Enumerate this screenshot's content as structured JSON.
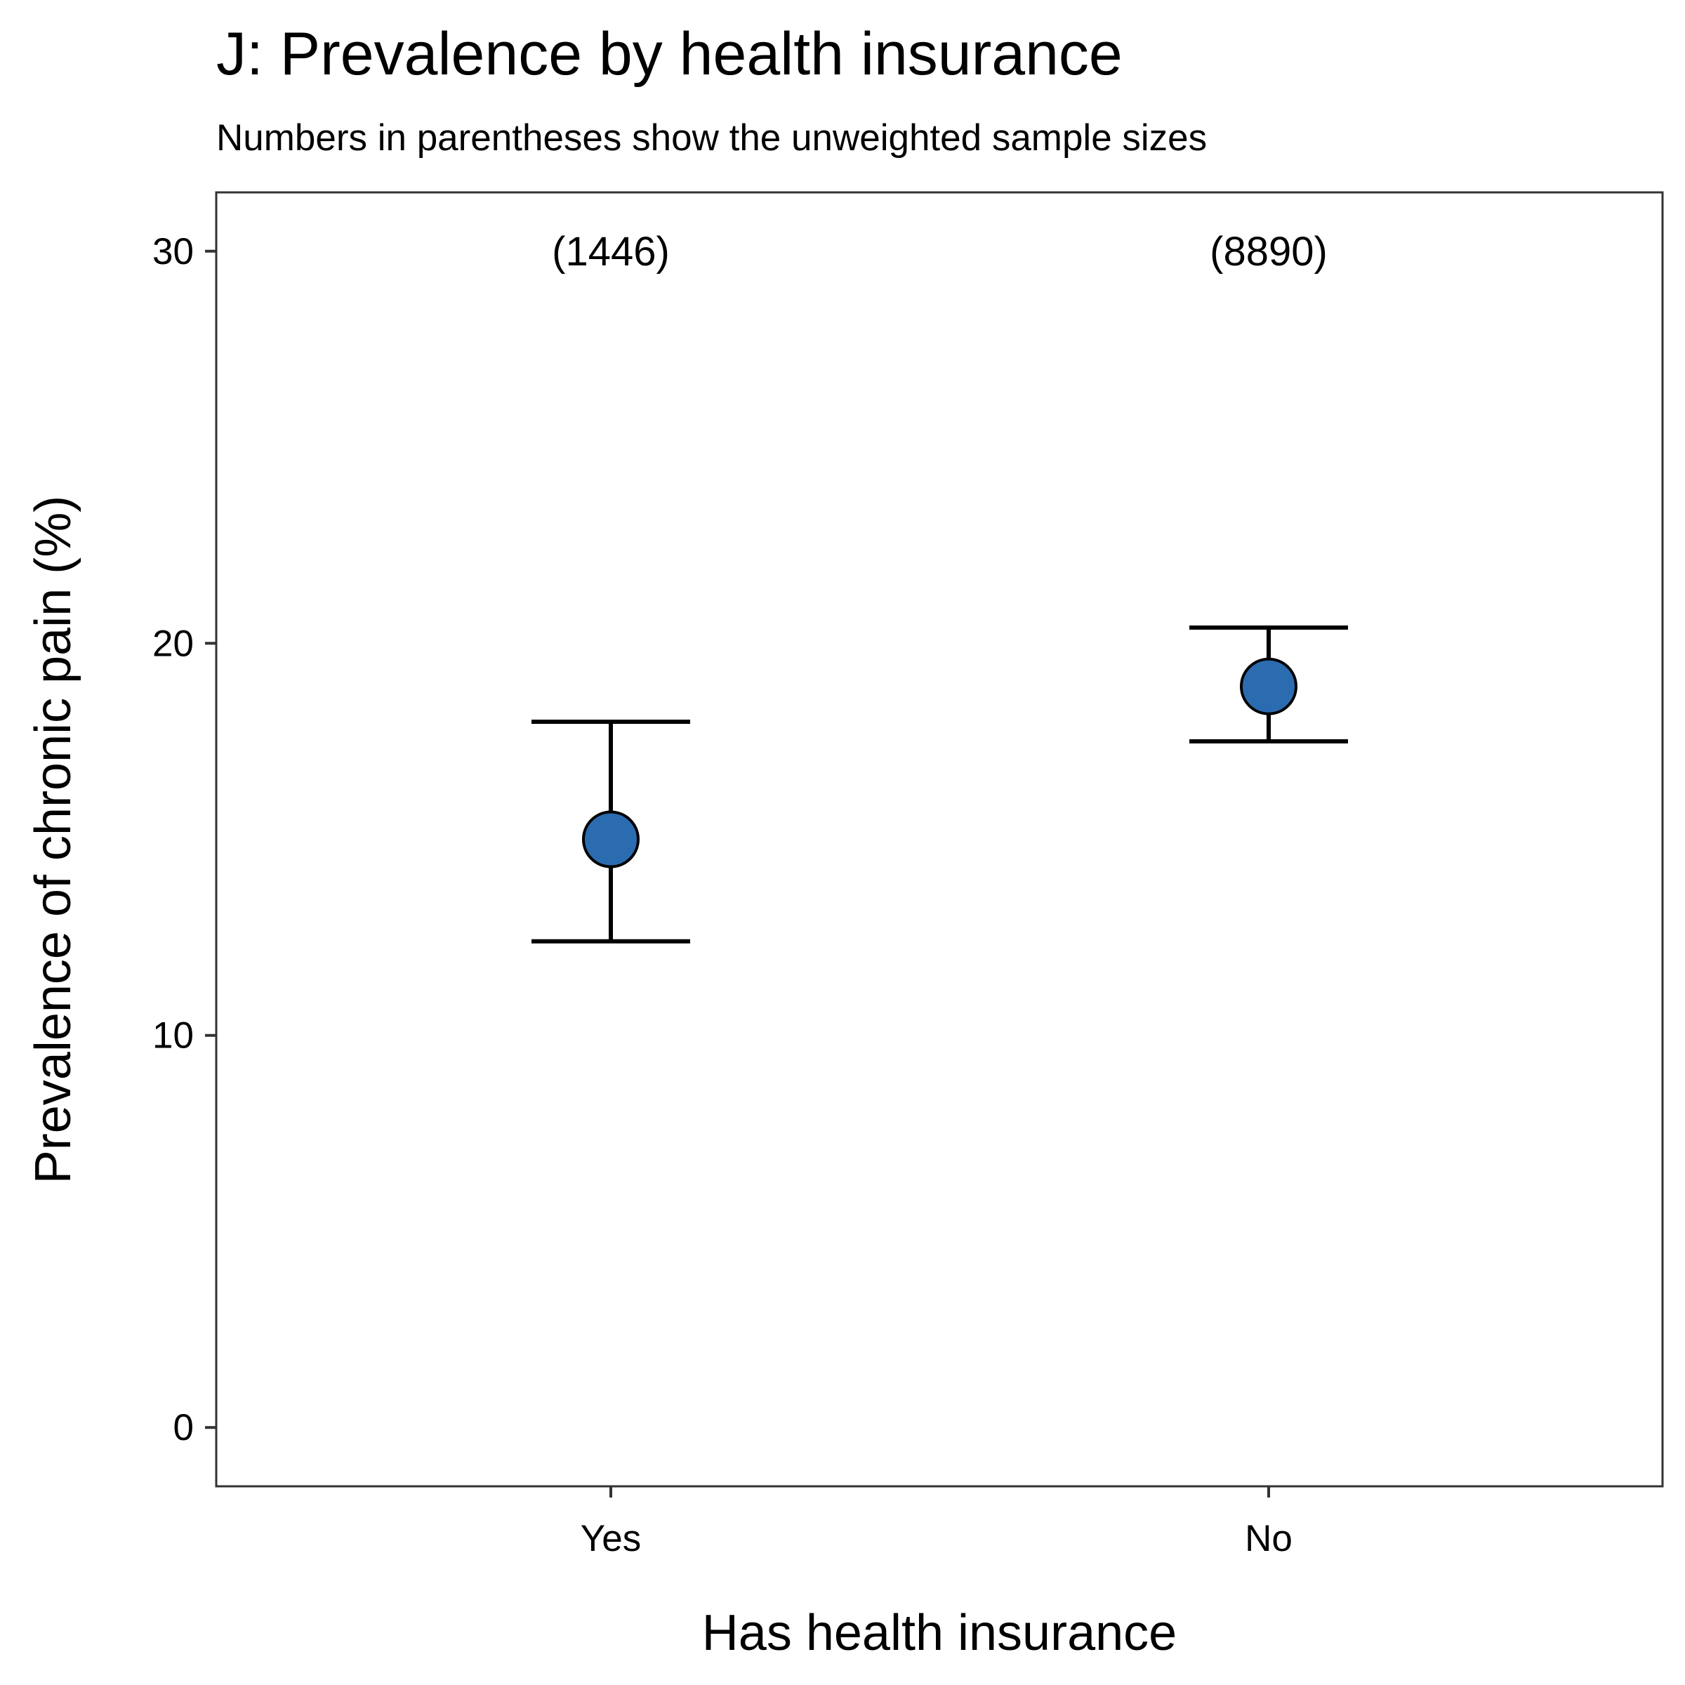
{
  "chart_data": {
    "type": "scatter",
    "title": "J: Prevalence by health insurance",
    "subtitle": "Numbers in parentheses show the unweighted sample sizes",
    "xlabel": "Has health insurance",
    "ylabel": "Prevalence of chronic pain (%)",
    "categories": [
      "Yes",
      "No"
    ],
    "points": [
      {
        "category": "Yes",
        "value": 15.0,
        "lower": 12.4,
        "upper": 18.0,
        "n_label": "(1446)"
      },
      {
        "category": "No",
        "value": 18.9,
        "lower": 17.5,
        "upper": 20.4,
        "n_label": "(8890)"
      }
    ],
    "ylim": [
      -1.5,
      31.5
    ],
    "yticks": [
      0,
      10,
      20,
      30
    ],
    "ytick_labels": [
      "0",
      "10",
      "20",
      "30"
    ],
    "label_y": 30,
    "grid": false,
    "legend": "none",
    "point_color": "#2b6cb0",
    "point_outline": "#000000",
    "line_color": "#000000"
  }
}
